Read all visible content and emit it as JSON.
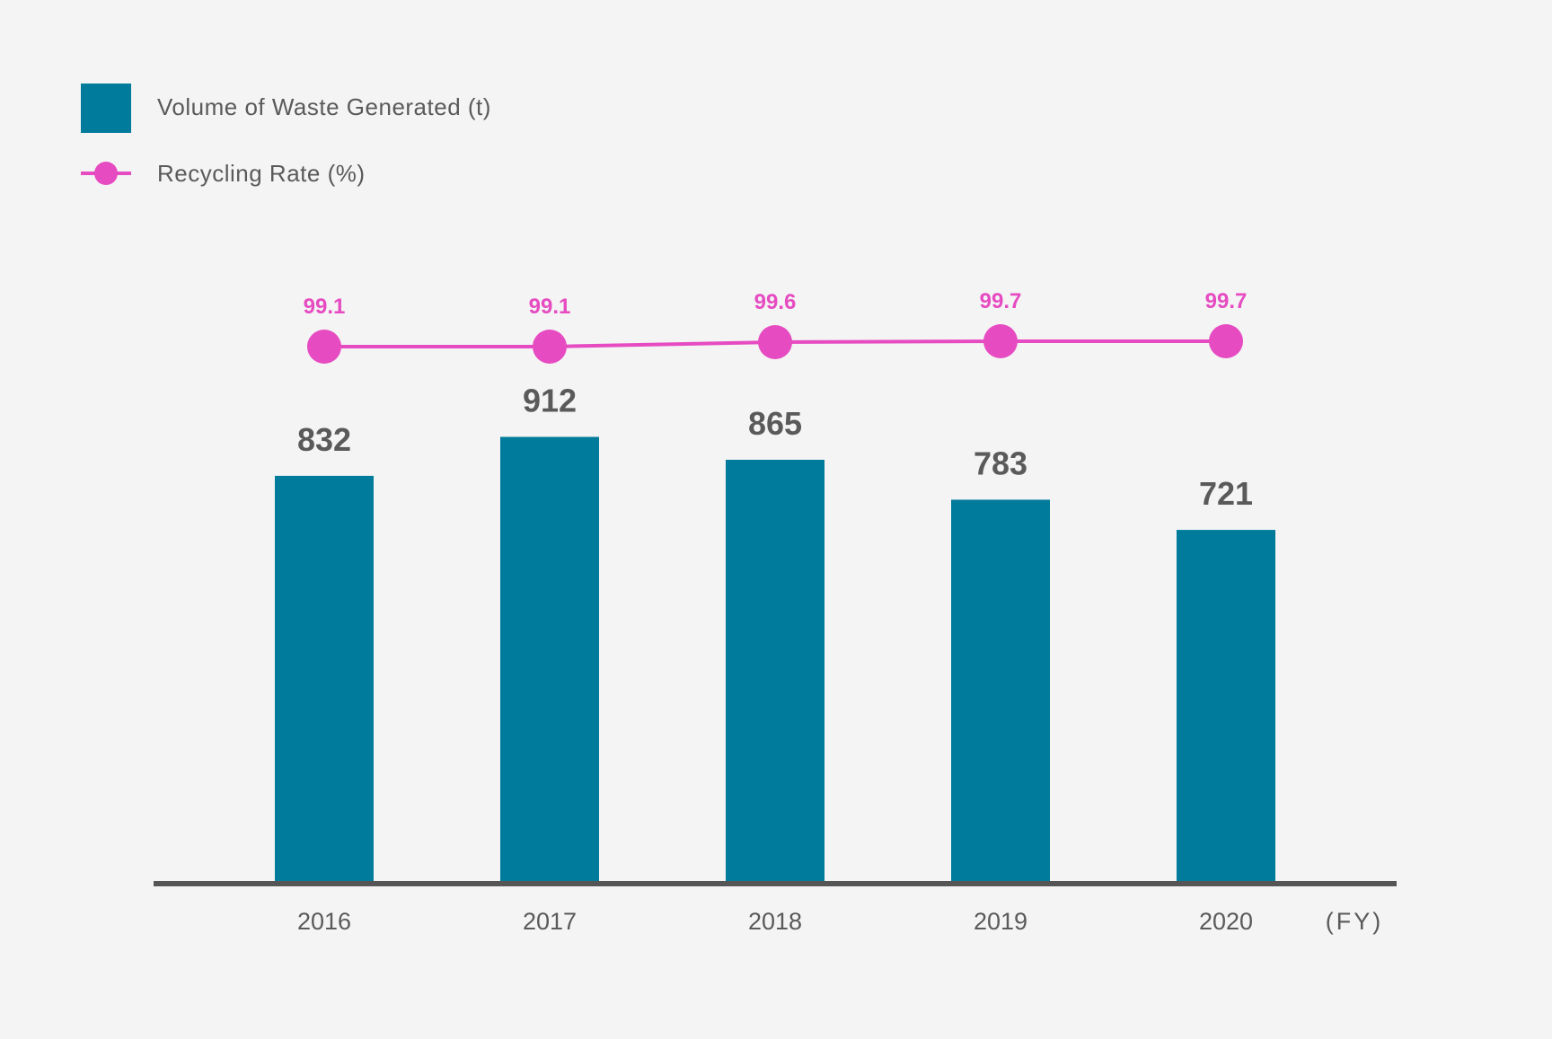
{
  "legend": {
    "volume_label": "Volume of Waste Generated (t)",
    "rate_label": "Recycling Rate (%)"
  },
  "x_unit": "(FY)",
  "colors": {
    "bar": "#007b9c",
    "line": "#e64bc1",
    "axis": "#555555",
    "text": "#5a5a5a",
    "background": "#f4f4f4"
  },
  "chart_data": {
    "type": "bar",
    "categories": [
      "2016",
      "2017",
      "2018",
      "2019",
      "2020"
    ],
    "series": [
      {
        "name": "Volume of Waste Generated (t)",
        "type": "bar",
        "values": [
          832,
          912,
          865,
          783,
          721
        ]
      },
      {
        "name": "Recycling Rate (%)",
        "type": "line",
        "values": [
          99.1,
          99.1,
          99.6,
          99.7,
          99.7
        ]
      }
    ],
    "xlabel": "(FY)",
    "ylabel": "",
    "ylim": [
      0,
      1000
    ],
    "grid": false,
    "legend_position": "top-left"
  }
}
